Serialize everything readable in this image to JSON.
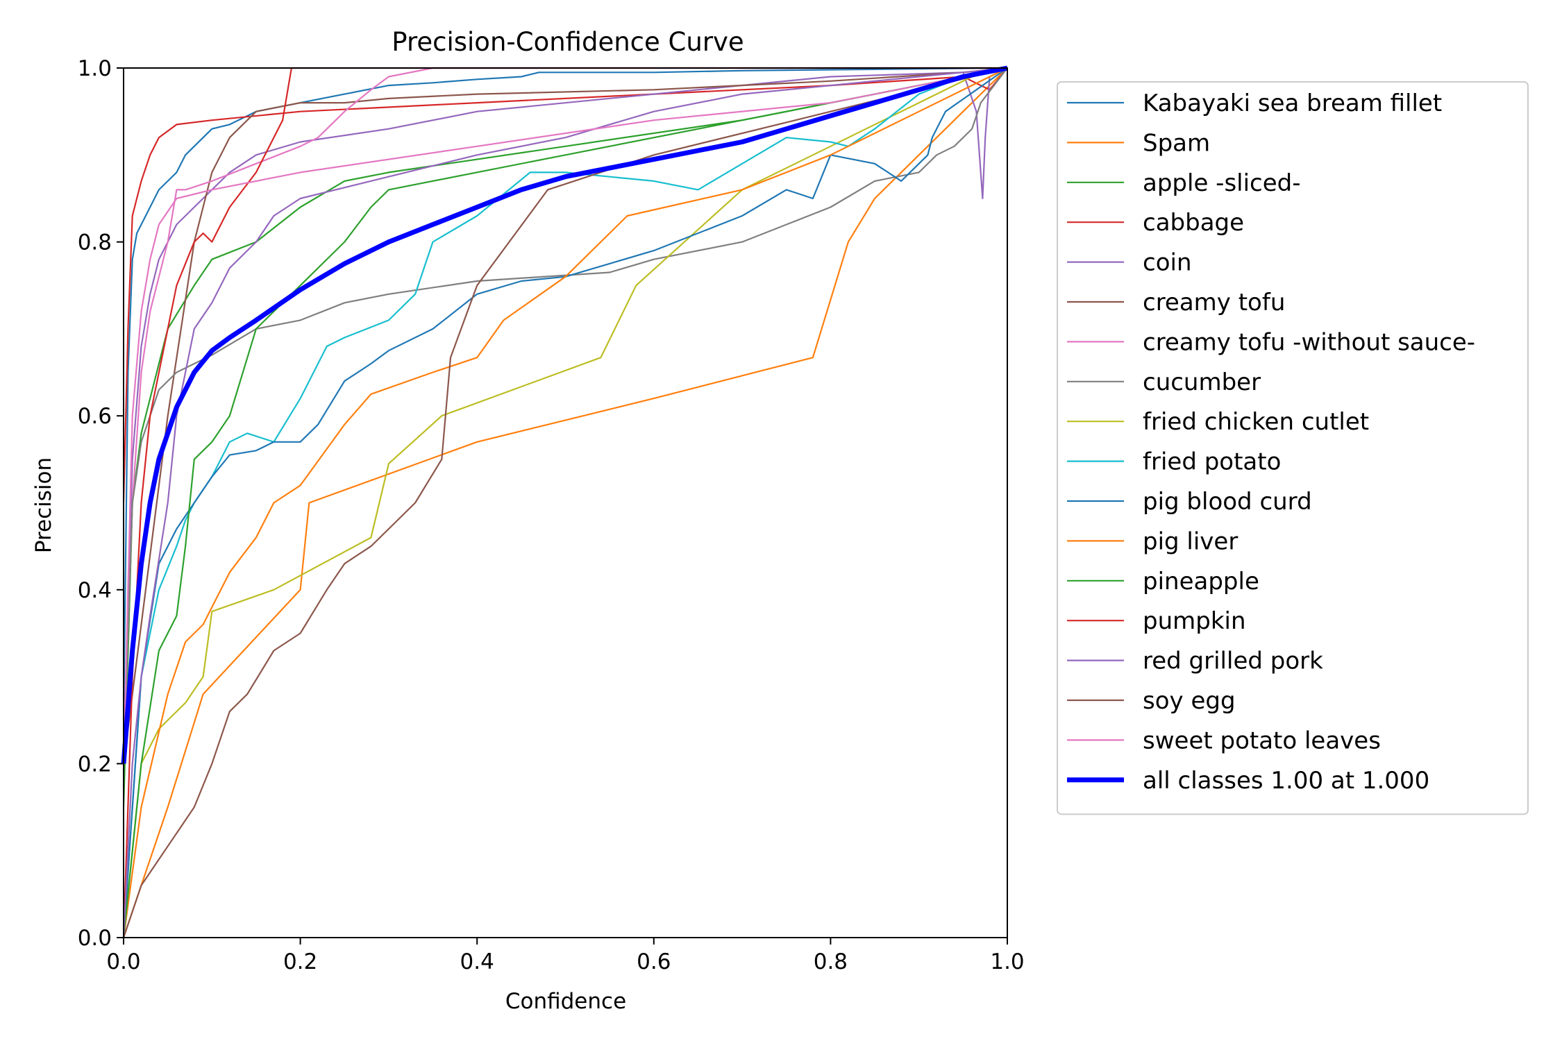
{
  "chart_data": {
    "type": "line",
    "title": "Precision-Confidence Curve",
    "xlabel": "Confidence",
    "ylabel": "Precision",
    "xlim": [
      0,
      1
    ],
    "ylim": [
      0,
      1
    ],
    "xticks": [
      "0.0",
      "0.2",
      "0.4",
      "0.6",
      "0.8",
      "1.0"
    ],
    "yticks": [
      "0.0",
      "0.2",
      "0.4",
      "0.6",
      "0.8",
      "1.0"
    ],
    "legend_position": "outside-right",
    "grid": false,
    "series": [
      {
        "name": "Kabayaki sea bream fillet",
        "color": "#1f77b4",
        "width": 1,
        "x": [
          0.0,
          0.005,
          0.01,
          0.015,
          0.02,
          0.03,
          0.04,
          0.05,
          0.06,
          0.07,
          0.08,
          0.09,
          0.1,
          0.12,
          0.15,
          0.2,
          0.25,
          0.3,
          0.35,
          0.4,
          0.45,
          0.47,
          0.5,
          0.6,
          0.7,
          0.8,
          0.9,
          1.0
        ],
        "y": [
          0.25,
          0.65,
          0.78,
          0.81,
          0.82,
          0.84,
          0.86,
          0.87,
          0.88,
          0.9,
          0.91,
          0.92,
          0.93,
          0.935,
          0.95,
          0.96,
          0.97,
          0.98,
          0.983,
          0.987,
          0.99,
          0.995,
          0.995,
          0.995,
          0.997,
          0.998,
          0.999,
          1.0
        ]
      },
      {
        "name": "Spam",
        "color": "#ff7f0e",
        "width": 1,
        "x": [
          0.0,
          0.05,
          0.09,
          0.2,
          0.21,
          0.4,
          0.6,
          0.78,
          0.82,
          0.85,
          0.9,
          0.95,
          1.0
        ],
        "y": [
          0.0,
          0.15,
          0.28,
          0.4,
          0.5,
          0.57,
          0.62,
          0.667,
          0.8,
          0.85,
          0.9,
          0.95,
          1.0
        ]
      },
      {
        "name": "apple -sliced-",
        "color": "#2ca02c",
        "width": 1,
        "x": [
          0.0,
          0.01,
          0.02,
          0.03,
          0.05,
          0.08,
          0.1,
          0.15,
          0.2,
          0.25,
          0.3,
          0.5,
          0.7,
          0.9,
          1.0
        ],
        "y": [
          0.15,
          0.5,
          0.58,
          0.62,
          0.7,
          0.75,
          0.78,
          0.8,
          0.84,
          0.87,
          0.88,
          0.91,
          0.94,
          0.98,
          1.0
        ]
      },
      {
        "name": "cabbage",
        "color": "#d62728",
        "width": 1,
        "x": [
          0.0,
          0.005,
          0.01,
          0.02,
          0.03,
          0.04,
          0.06,
          0.1,
          0.2,
          0.4,
          0.6,
          0.8,
          0.95,
          0.97,
          0.98,
          1.0
        ],
        "y": [
          0.5,
          0.7,
          0.83,
          0.87,
          0.9,
          0.92,
          0.935,
          0.94,
          0.95,
          0.96,
          0.97,
          0.98,
          0.99,
          0.98,
          0.975,
          1.0
        ]
      },
      {
        "name": "coin",
        "color": "#9467bd",
        "width": 1,
        "x": [
          0.0,
          0.01,
          0.02,
          0.03,
          0.04,
          0.05,
          0.06,
          0.08,
          0.1,
          0.12,
          0.15,
          0.2,
          0.3,
          0.4,
          0.6,
          0.8,
          0.95,
          0.965,
          0.972,
          0.975,
          0.98,
          1.0
        ],
        "y": [
          0.2,
          0.55,
          0.68,
          0.74,
          0.78,
          0.8,
          0.82,
          0.84,
          0.86,
          0.88,
          0.9,
          0.915,
          0.93,
          0.95,
          0.97,
          0.99,
          0.995,
          0.95,
          0.85,
          0.92,
          0.99,
          1.0
        ]
      },
      {
        "name": "creamy tofu",
        "color": "#8c564b",
        "width": 1,
        "x": [
          0.0,
          0.05,
          0.08,
          0.1,
          0.12,
          0.15,
          0.2,
          0.25,
          0.3,
          0.4,
          0.6,
          0.8,
          0.95,
          1.0
        ],
        "y": [
          0.2,
          0.6,
          0.8,
          0.88,
          0.92,
          0.95,
          0.96,
          0.96,
          0.965,
          0.97,
          0.975,
          0.985,
          0.995,
          1.0
        ]
      },
      {
        "name": "creamy tofu -without sauce-",
        "color": "#e377c2",
        "width": 1,
        "x": [
          0.0,
          0.01,
          0.02,
          0.03,
          0.05,
          0.06,
          0.07,
          0.1,
          0.15,
          0.2,
          0.22,
          0.25,
          0.28,
          0.3,
          0.35,
          1.0
        ],
        "y": [
          0.2,
          0.5,
          0.65,
          0.72,
          0.8,
          0.86,
          0.86,
          0.87,
          0.89,
          0.91,
          0.92,
          0.95,
          0.975,
          0.99,
          1.0,
          1.0
        ]
      },
      {
        "name": "cucumber",
        "color": "#7f7f7f",
        "width": 1,
        "x": [
          0.0,
          0.01,
          0.02,
          0.03,
          0.04,
          0.06,
          0.1,
          0.15,
          0.2,
          0.25,
          0.3,
          0.4,
          0.55,
          0.6,
          0.7,
          0.8,
          0.85,
          0.9,
          0.92,
          0.94,
          0.96,
          0.97,
          1.0
        ],
        "y": [
          0.2,
          0.5,
          0.57,
          0.6,
          0.63,
          0.65,
          0.67,
          0.7,
          0.71,
          0.73,
          0.74,
          0.755,
          0.765,
          0.78,
          0.8,
          0.84,
          0.87,
          0.88,
          0.9,
          0.91,
          0.93,
          0.96,
          1.0
        ]
      },
      {
        "name": "fried chicken cutlet",
        "color": "#bcbd22",
        "width": 1,
        "x": [
          0.0,
          0.02,
          0.04,
          0.07,
          0.09,
          0.1,
          0.17,
          0.28,
          0.3,
          0.36,
          0.54,
          0.58,
          0.7,
          0.8,
          0.9,
          0.96,
          1.0
        ],
        "y": [
          0.0,
          0.2,
          0.24,
          0.27,
          0.3,
          0.375,
          0.4,
          0.46,
          0.545,
          0.6,
          0.667,
          0.75,
          0.86,
          0.91,
          0.96,
          0.99,
          1.0
        ]
      },
      {
        "name": "fried potato",
        "color": "#17becf",
        "width": 1,
        "x": [
          0.0,
          0.02,
          0.04,
          0.06,
          0.07,
          0.08,
          0.1,
          0.12,
          0.14,
          0.17,
          0.2,
          0.23,
          0.25,
          0.3,
          0.33,
          0.35,
          0.4,
          0.46,
          0.5,
          0.6,
          0.65,
          0.75,
          0.8,
          0.82,
          0.85,
          0.9,
          0.95,
          1.0
        ],
        "y": [
          0.0,
          0.3,
          0.4,
          0.45,
          0.48,
          0.5,
          0.53,
          0.57,
          0.58,
          0.57,
          0.62,
          0.68,
          0.69,
          0.71,
          0.74,
          0.8,
          0.83,
          0.88,
          0.88,
          0.87,
          0.86,
          0.92,
          0.915,
          0.91,
          0.93,
          0.97,
          0.99,
          1.0
        ]
      },
      {
        "name": "pig blood curd",
        "color": "#1f77b4",
        "width": 1,
        "x": [
          0.0,
          0.02,
          0.04,
          0.06,
          0.08,
          0.1,
          0.12,
          0.15,
          0.17,
          0.2,
          0.22,
          0.25,
          0.28,
          0.3,
          0.35,
          0.4,
          0.45,
          0.5,
          0.6,
          0.7,
          0.75,
          0.78,
          0.8,
          0.85,
          0.88,
          0.91,
          0.915,
          0.93,
          1.0
        ],
        "y": [
          0.0,
          0.3,
          0.43,
          0.47,
          0.5,
          0.53,
          0.555,
          0.56,
          0.57,
          0.57,
          0.59,
          0.64,
          0.66,
          0.675,
          0.7,
          0.74,
          0.755,
          0.76,
          0.79,
          0.83,
          0.86,
          0.85,
          0.9,
          0.89,
          0.87,
          0.9,
          0.92,
          0.95,
          1.0
        ]
      },
      {
        "name": "pig liver",
        "color": "#ff7f0e",
        "width": 1,
        "x": [
          0.0,
          0.02,
          0.05,
          0.07,
          0.09,
          0.1,
          0.12,
          0.15,
          0.17,
          0.2,
          0.25,
          0.28,
          0.35,
          0.4,
          0.43,
          0.5,
          0.57,
          0.7,
          0.8,
          0.9,
          1.0
        ],
        "y": [
          0.0,
          0.15,
          0.28,
          0.34,
          0.36,
          0.38,
          0.42,
          0.46,
          0.5,
          0.52,
          0.59,
          0.625,
          0.65,
          0.667,
          0.71,
          0.76,
          0.83,
          0.86,
          0.9,
          0.95,
          1.0
        ]
      },
      {
        "name": "pineapple",
        "color": "#2ca02c",
        "width": 1,
        "x": [
          0.0,
          0.02,
          0.04,
          0.06,
          0.07,
          0.08,
          0.1,
          0.12,
          0.15,
          0.17,
          0.2,
          0.25,
          0.28,
          0.3,
          0.5,
          0.7,
          0.9,
          1.0
        ],
        "y": [
          0.0,
          0.2,
          0.33,
          0.37,
          0.45,
          0.55,
          0.57,
          0.6,
          0.7,
          0.72,
          0.75,
          0.8,
          0.84,
          0.86,
          0.9,
          0.94,
          0.98,
          1.0
        ]
      },
      {
        "name": "pumpkin",
        "color": "#d62728",
        "width": 1,
        "x": [
          0.0,
          0.01,
          0.02,
          0.03,
          0.05,
          0.06,
          0.08,
          0.09,
          0.1,
          0.12,
          0.15,
          0.17,
          0.18,
          0.19,
          0.2,
          1.0
        ],
        "y": [
          0.0,
          0.3,
          0.5,
          0.6,
          0.7,
          0.75,
          0.8,
          0.81,
          0.8,
          0.84,
          0.88,
          0.92,
          0.94,
          1.0,
          1.0,
          1.0
        ]
      },
      {
        "name": "red grilled pork",
        "color": "#9467bd",
        "width": 1,
        "x": [
          0.0,
          0.01,
          0.02,
          0.03,
          0.05,
          0.06,
          0.08,
          0.1,
          0.12,
          0.15,
          0.17,
          0.2,
          0.3,
          0.4,
          0.5,
          0.6,
          0.7,
          0.8,
          0.9,
          1.0
        ],
        "y": [
          0.0,
          0.2,
          0.3,
          0.37,
          0.5,
          0.6,
          0.7,
          0.73,
          0.77,
          0.8,
          0.83,
          0.85,
          0.875,
          0.9,
          0.92,
          0.95,
          0.97,
          0.98,
          0.99,
          1.0
        ]
      },
      {
        "name": "soy egg",
        "color": "#8c564b",
        "width": 1,
        "x": [
          0.0,
          0.02,
          0.04,
          0.06,
          0.08,
          0.1,
          0.12,
          0.14,
          0.17,
          0.2,
          0.23,
          0.25,
          0.28,
          0.3,
          0.33,
          0.36,
          0.37,
          0.4,
          0.48,
          0.6,
          0.8,
          1.0
        ],
        "y": [
          0.0,
          0.06,
          0.09,
          0.12,
          0.15,
          0.2,
          0.26,
          0.28,
          0.33,
          0.35,
          0.4,
          0.43,
          0.45,
          0.47,
          0.5,
          0.55,
          0.667,
          0.75,
          0.86,
          0.9,
          0.95,
          1.0
        ]
      },
      {
        "name": "sweet potato leaves",
        "color": "#e377c2",
        "width": 1,
        "x": [
          0.0,
          0.01,
          0.02,
          0.03,
          0.04,
          0.06,
          0.1,
          0.2,
          0.4,
          0.6,
          0.8,
          0.9,
          1.0
        ],
        "y": [
          0.2,
          0.6,
          0.72,
          0.78,
          0.82,
          0.85,
          0.86,
          0.88,
          0.91,
          0.94,
          0.96,
          0.98,
          1.0
        ]
      },
      {
        "name": "all classes 1.00 at 1.000",
        "color": "#0000ff",
        "width": 3,
        "x": [
          0.0,
          0.01,
          0.02,
          0.03,
          0.04,
          0.05,
          0.06,
          0.08,
          0.1,
          0.12,
          0.15,
          0.2,
          0.25,
          0.3,
          0.35,
          0.4,
          0.45,
          0.5,
          0.55,
          0.6,
          0.65,
          0.7,
          0.75,
          0.8,
          0.85,
          0.9,
          0.95,
          1.0
        ],
        "y": [
          0.2,
          0.33,
          0.43,
          0.5,
          0.55,
          0.58,
          0.61,
          0.65,
          0.675,
          0.69,
          0.71,
          0.745,
          0.775,
          0.8,
          0.82,
          0.84,
          0.86,
          0.875,
          0.885,
          0.895,
          0.905,
          0.915,
          0.93,
          0.945,
          0.96,
          0.975,
          0.99,
          1.0
        ]
      }
    ]
  }
}
